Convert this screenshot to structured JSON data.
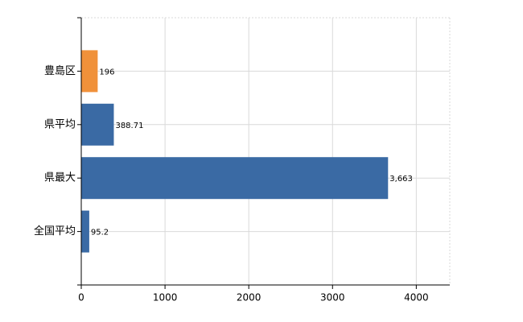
{
  "chart_data": {
    "type": "bar",
    "orientation": "horizontal",
    "categories": [
      "豊島区",
      "県平均",
      "県最大",
      "全国平均"
    ],
    "values": [
      196,
      388.71,
      3663,
      95.2
    ],
    "value_labels": [
      "196",
      "388.71",
      "3,663",
      "95.2"
    ],
    "colors": [
      "#f0913a",
      "#3a6aa4",
      "#3a6aa4",
      "#3a6aa4"
    ],
    "xlim": [
      0,
      4400
    ],
    "xticks": [
      0,
      1000,
      2000,
      3000,
      4000
    ],
    "grid": true
  }
}
